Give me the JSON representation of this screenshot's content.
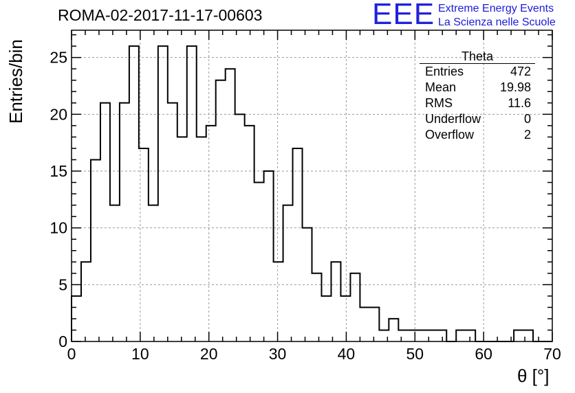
{
  "header": {
    "title": "ROMA-02-2017-11-17-00603",
    "logo_letters": "EEE",
    "logo_line1": "Extreme Energy Events",
    "logo_line2": "La Scienza nelle Scuole"
  },
  "stats": {
    "name": "Theta",
    "rows": [
      {
        "label": "Entries",
        "value": "472"
      },
      {
        "label": "Mean",
        "value": "19.98"
      },
      {
        "label": "RMS",
        "value": "11.6"
      },
      {
        "label": "Underflow",
        "value": "0"
      },
      {
        "label": "Overflow",
        "value": "2"
      }
    ]
  },
  "chart_data": {
    "type": "bar",
    "xlabel": "θ [°]",
    "ylabel": "Entries/bin",
    "xlim": [
      0,
      70
    ],
    "ylim": [
      0,
      27.4
    ],
    "grid": true,
    "bin_width": 1.4,
    "x_ticks": [
      "0",
      "10",
      "20",
      "30",
      "40",
      "50",
      "60",
      "70"
    ],
    "y_ticks": [
      "0",
      "5",
      "10",
      "15",
      "20",
      "25"
    ],
    "values": [
      4,
      7,
      16,
      21,
      12,
      21,
      26,
      17,
      12,
      26,
      21,
      18,
      26,
      18,
      19,
      23,
      24,
      20,
      19,
      14,
      15,
      7,
      12,
      17,
      10,
      6,
      4,
      7,
      4,
      6,
      3,
      3,
      1,
      2,
      1,
      1,
      1,
      1,
      1,
      0,
      1,
      1,
      0,
      0,
      0,
      0,
      1,
      1,
      0,
      0
    ]
  }
}
